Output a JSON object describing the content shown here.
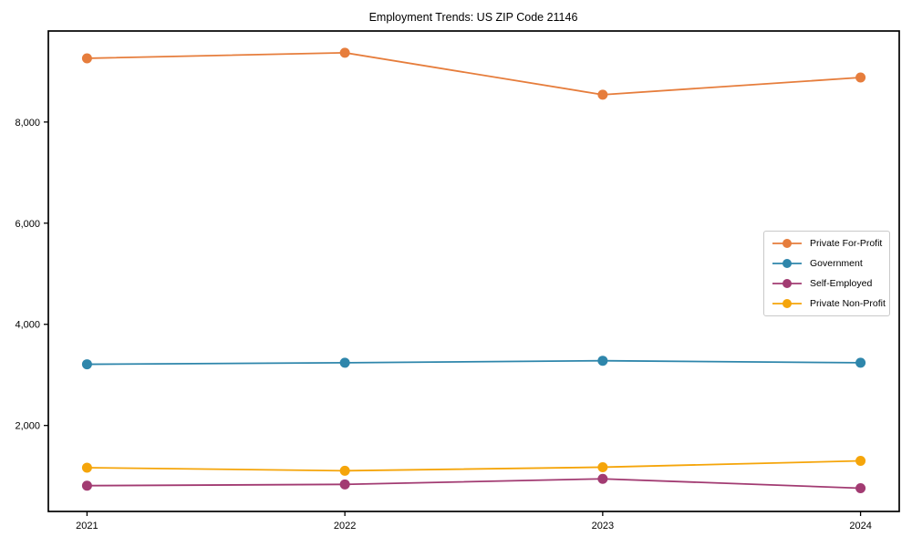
{
  "chart_data": {
    "type": "line",
    "title": "Employment Trends: US ZIP Code 21146",
    "x": [
      2021,
      2022,
      2023,
      2024
    ],
    "x_tick_labels": [
      "2021",
      "2022",
      "2023",
      "2024"
    ],
    "y_ticks": [
      2000,
      4000,
      6000,
      8000
    ],
    "y_tick_labels": [
      "2,000",
      "4,000",
      "6,000",
      "8,000"
    ],
    "xlim": [
      2020.85,
      2024.15
    ],
    "ylim": [
      300,
      9800
    ],
    "grid": false,
    "legend_position": "center-right",
    "series": [
      {
        "name": "Private For-Profit",
        "color": "#E67D3C",
        "values": [
          9260,
          9370,
          8540,
          8880
        ]
      },
      {
        "name": "Government",
        "color": "#2E86AB",
        "values": [
          3210,
          3240,
          3280,
          3240
        ]
      },
      {
        "name": "Self-Employed",
        "color": "#A23B72",
        "values": [
          810,
          835,
          945,
          760
        ]
      },
      {
        "name": "Private Non-Profit",
        "color": "#F5A50A",
        "values": [
          1165,
          1105,
          1175,
          1300
        ]
      }
    ],
    "style": {
      "spine_color": "#000000",
      "background": "#ffffff",
      "line_width": 1.8,
      "marker_radius": 5.5
    }
  }
}
